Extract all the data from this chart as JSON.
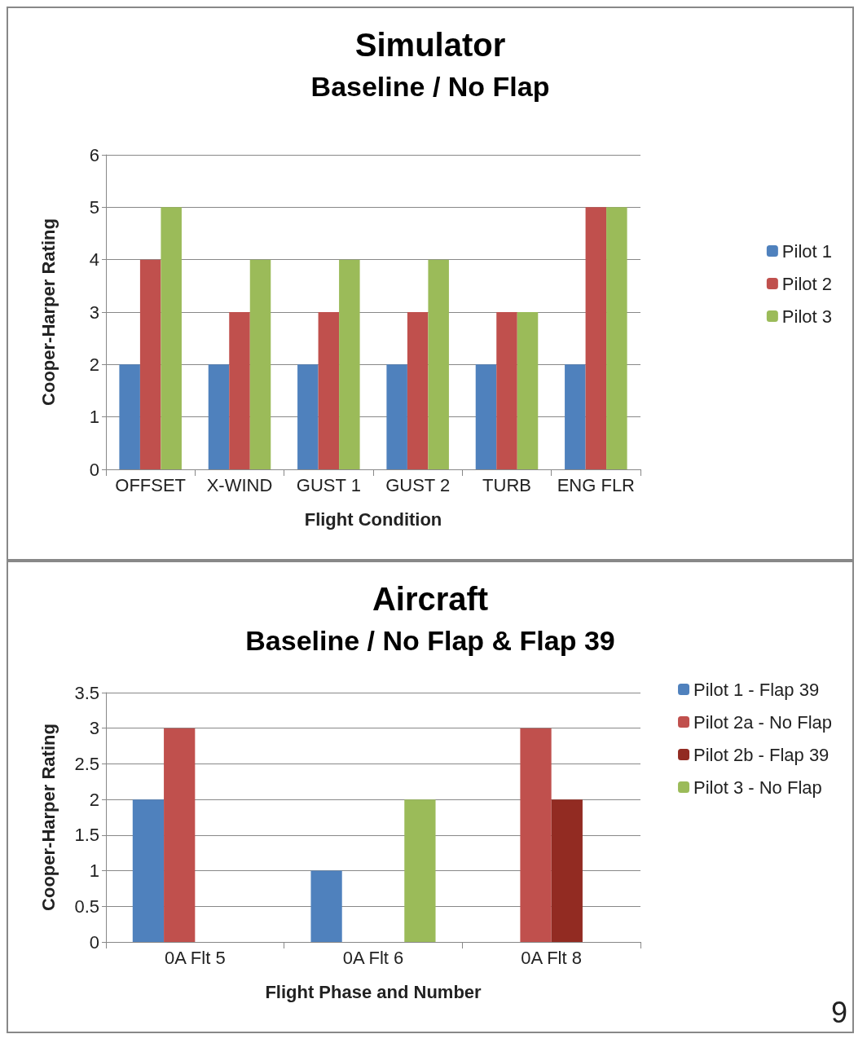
{
  "chart_data": [
    {
      "type": "bar",
      "title": "Simulator",
      "subtitle": "Baseline / No Flap",
      "xlabel": "Flight Condition",
      "ylabel": "Cooper-Harper Rating",
      "categories": [
        "OFFSET",
        "X-WIND",
        "GUST 1",
        "GUST 2",
        "TURB",
        "ENG FLR"
      ],
      "series": [
        {
          "name": "Pilot 1",
          "color": "#4f81bd",
          "values": [
            2,
            2,
            2,
            2,
            2,
            2
          ]
        },
        {
          "name": "Pilot 2",
          "color": "#c0504d",
          "values": [
            4,
            3,
            3,
            3,
            3,
            5
          ]
        },
        {
          "name": "Pilot 3",
          "color": "#9bbb59",
          "values": [
            5,
            4,
            4,
            4,
            3,
            5
          ]
        }
      ],
      "ylim": [
        0,
        6
      ],
      "yticks": [
        0,
        1,
        2,
        3,
        4,
        5,
        6
      ],
      "grid": "y",
      "legend": "right"
    },
    {
      "type": "bar",
      "title": "Aircraft",
      "subtitle": "Baseline / No Flap & Flap 39",
      "xlabel": "Flight Phase and Number",
      "ylabel": "Cooper-Harper Rating",
      "categories": [
        "0A Flt 5",
        "0A Flt 6",
        "0A Flt 8"
      ],
      "series": [
        {
          "name": "Pilot 1 - Flap 39",
          "color": "#4f81bd",
          "values": [
            2,
            1,
            null
          ]
        },
        {
          "name": "Pilot 2a - No Flap",
          "color": "#c0504d",
          "values": [
            3,
            null,
            3
          ]
        },
        {
          "name": "Pilot 2b - Flap 39",
          "color": "#922b22",
          "values": [
            null,
            null,
            2
          ]
        },
        {
          "name": "Pilot 3 - No Flap",
          "color": "#9bbb59",
          "values": [
            null,
            2,
            null
          ]
        }
      ],
      "ylim": [
        0,
        3.5
      ],
      "yticks": [
        0,
        0.5,
        1,
        1.5,
        2,
        2.5,
        3,
        3.5
      ],
      "grid": "y",
      "legend": "top right",
      "annotations": [
        "9"
      ]
    }
  ]
}
